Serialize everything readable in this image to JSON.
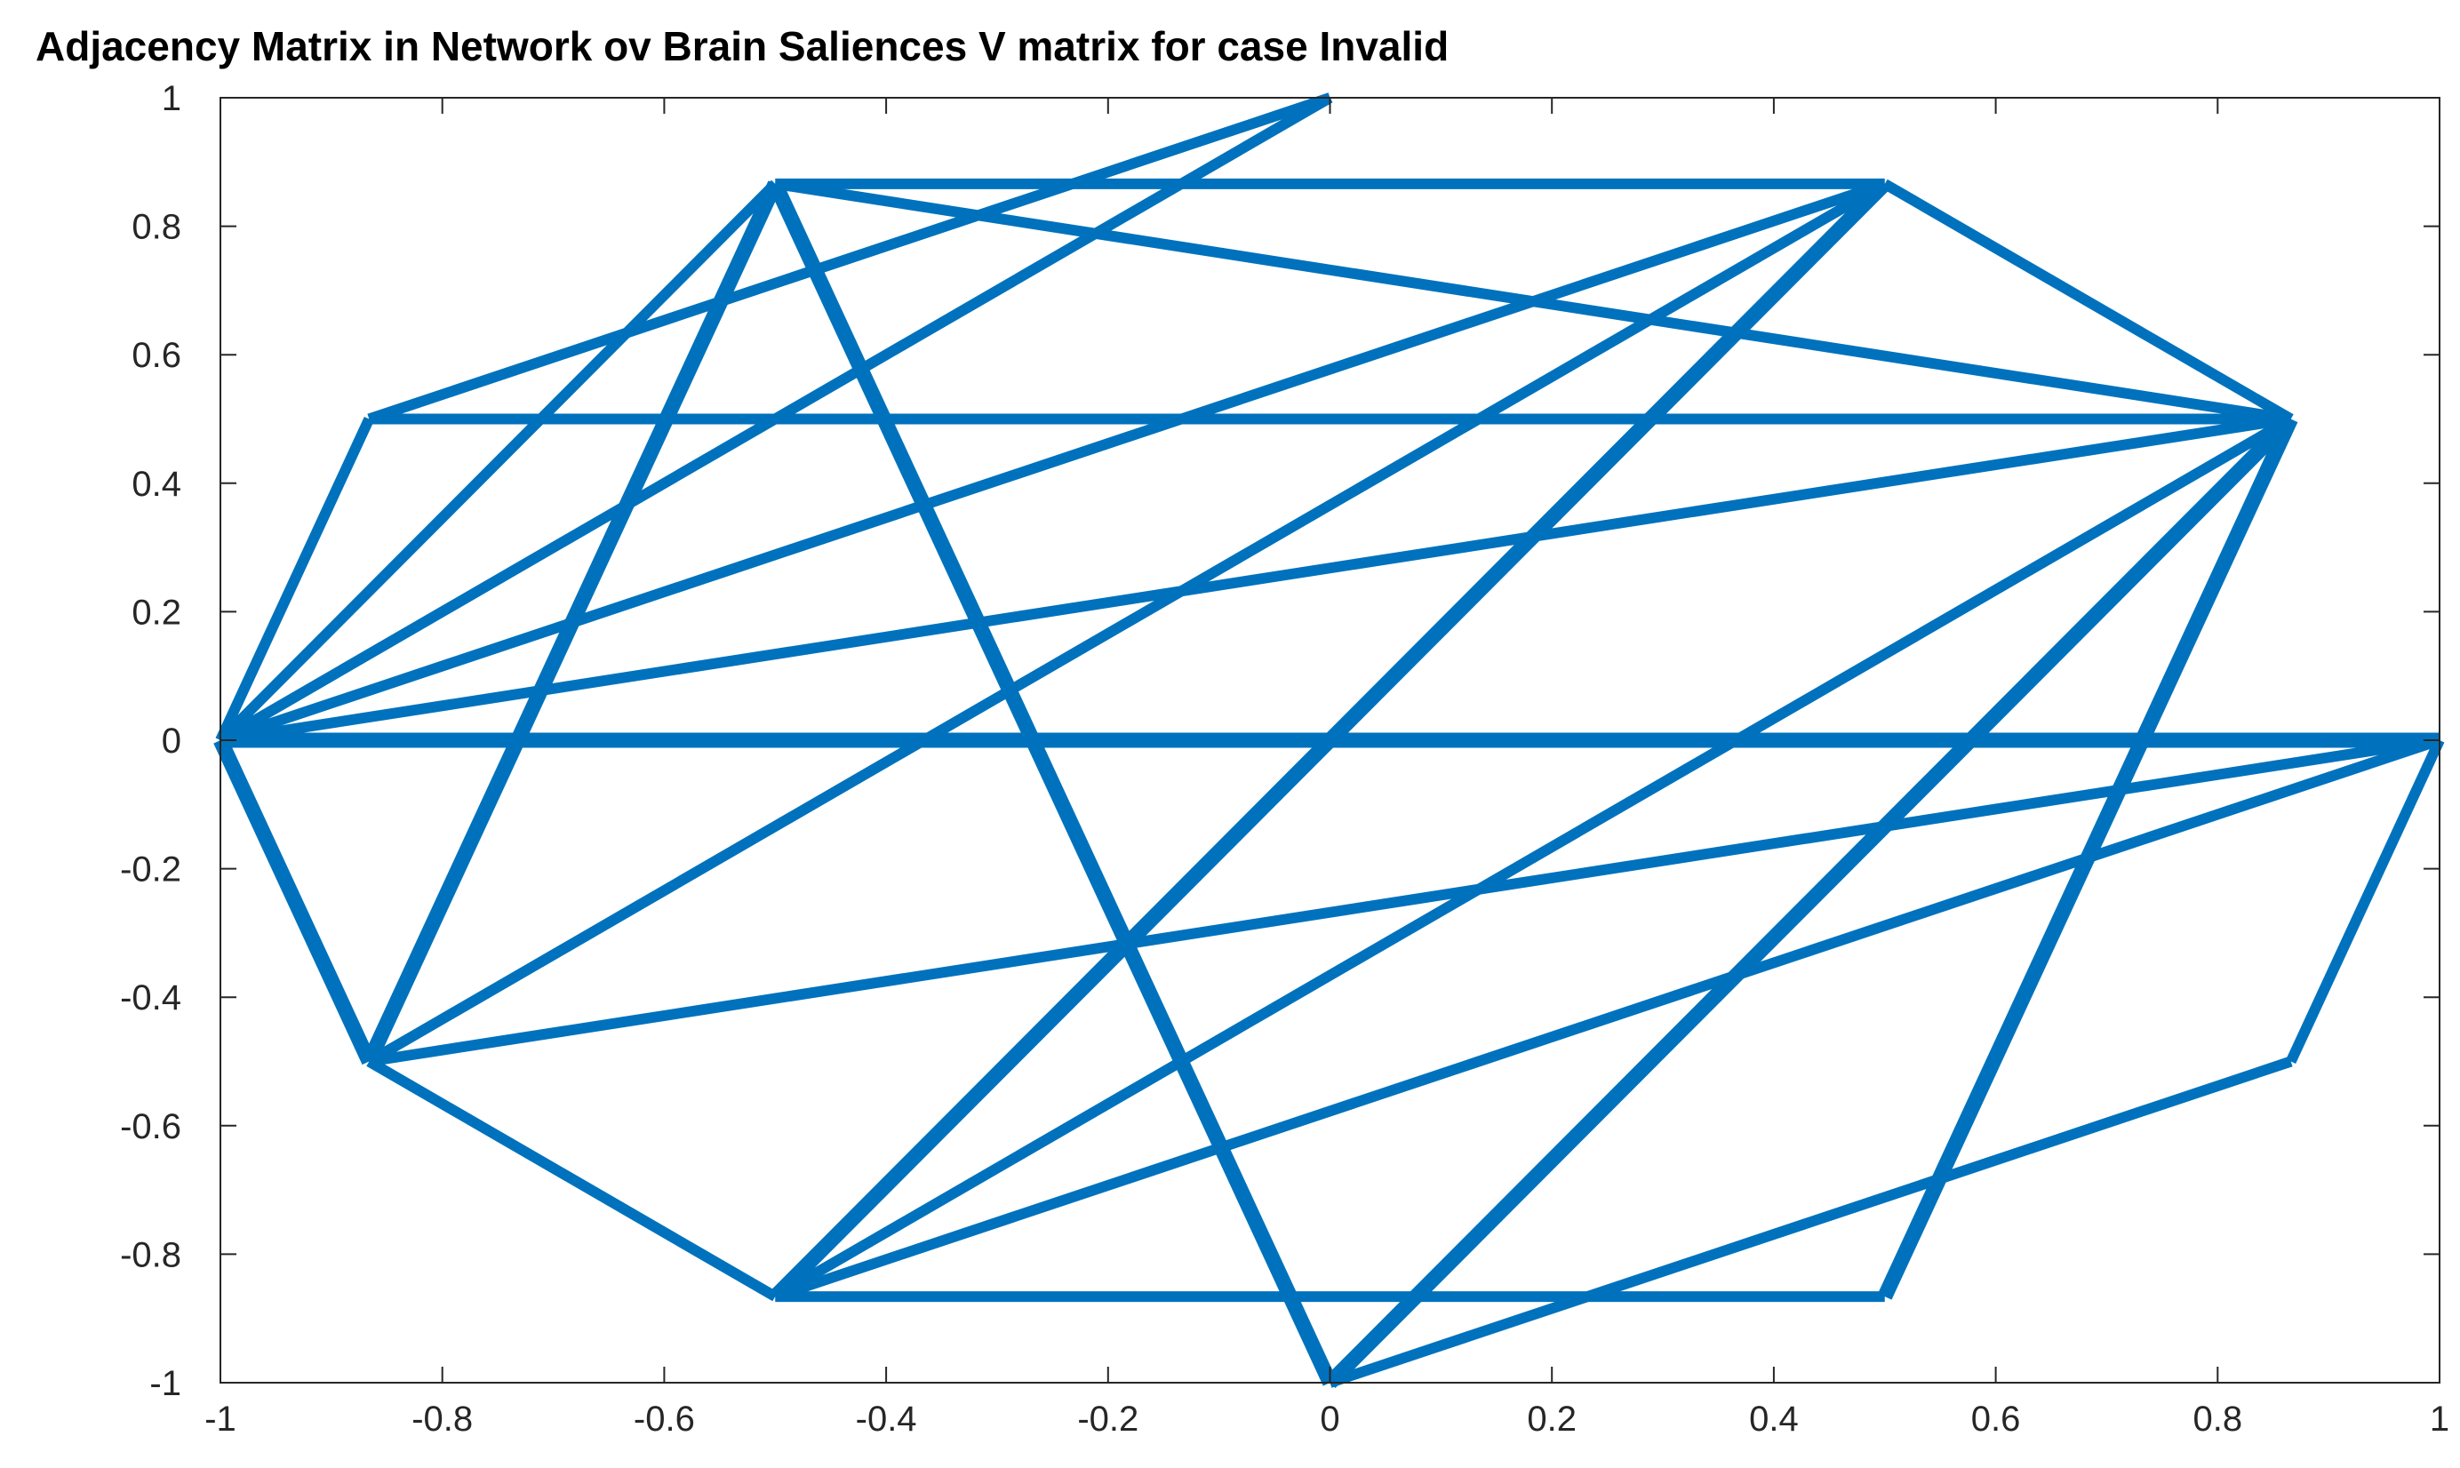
{
  "chart_data": {
    "type": "line",
    "title": "Adjacency Matrix in Network ov Brain Saliences V matrix for case Invalid",
    "xlabel": "",
    "ylabel": "",
    "xlim": [
      -1,
      1
    ],
    "ylim": [
      -1,
      1
    ],
    "xticks": [
      -1,
      -0.8,
      -0.6,
      -0.4,
      -0.2,
      0,
      0.2,
      0.4,
      0.6,
      0.8,
      1
    ],
    "yticks": [
      -1,
      -0.8,
      -0.6,
      -0.4,
      -0.2,
      0,
      0.2,
      0.4,
      0.6,
      0.8,
      1
    ],
    "xtick_labels": [
      "-1",
      "-0.8",
      "-0.6",
      "-0.4",
      "-0.2",
      "0",
      "0.2",
      "0.4",
      "0.6",
      "0.8",
      "1"
    ],
    "ytick_labels": [
      "-1",
      "-0.8",
      "-0.6",
      "-0.4",
      "-0.2",
      "0",
      "0.2",
      "0.4",
      "0.6",
      "0.8",
      "1"
    ],
    "grid": false,
    "box": true,
    "line_color": "#0072BD",
    "nodes": [
      [
        1,
        0
      ],
      [
        0.866,
        0.5
      ],
      [
        0.5,
        0.866
      ],
      [
        0,
        1
      ],
      [
        -0.5,
        0.866
      ],
      [
        -0.866,
        0.5
      ],
      [
        -1,
        0
      ],
      [
        -0.866,
        -0.5
      ],
      [
        -0.5,
        -0.866
      ],
      [
        0,
        -1
      ],
      [
        0.5,
        -0.866
      ],
      [
        0.866,
        -0.5
      ]
    ],
    "edges": [
      {
        "from": 3,
        "to": 5,
        "weight": 1
      },
      {
        "from": 3,
        "to": 6,
        "weight": 1
      },
      {
        "from": 4,
        "to": 2,
        "weight": 1
      },
      {
        "from": 4,
        "to": 1,
        "weight": 1
      },
      {
        "from": 4,
        "to": 6,
        "weight": 1
      },
      {
        "from": 4,
        "to": 7,
        "weight": 2
      },
      {
        "from": 4,
        "to": 9,
        "weight": 2
      },
      {
        "from": 2,
        "to": 1,
        "weight": 1
      },
      {
        "from": 2,
        "to": 6,
        "weight": 1
      },
      {
        "from": 2,
        "to": 7,
        "weight": 1
      },
      {
        "from": 2,
        "to": 8,
        "weight": 2
      },
      {
        "from": 5,
        "to": 1,
        "weight": 1
      },
      {
        "from": 5,
        "to": 6,
        "weight": 1
      },
      {
        "from": 1,
        "to": 6,
        "weight": 1
      },
      {
        "from": 1,
        "to": 8,
        "weight": 1
      },
      {
        "from": 1,
        "to": 9,
        "weight": 2
      },
      {
        "from": 1,
        "to": 10,
        "weight": 2
      },
      {
        "from": 6,
        "to": 0,
        "weight": 2
      },
      {
        "from": 6,
        "to": 7,
        "weight": 2
      },
      {
        "from": 0,
        "to": 7,
        "weight": 1
      },
      {
        "from": 0,
        "to": 8,
        "weight": 1
      },
      {
        "from": 0,
        "to": 11,
        "weight": 1
      },
      {
        "from": 7,
        "to": 8,
        "weight": 1
      },
      {
        "from": 8,
        "to": 10,
        "weight": 1
      },
      {
        "from": 9,
        "to": 11,
        "weight": 1
      }
    ]
  }
}
